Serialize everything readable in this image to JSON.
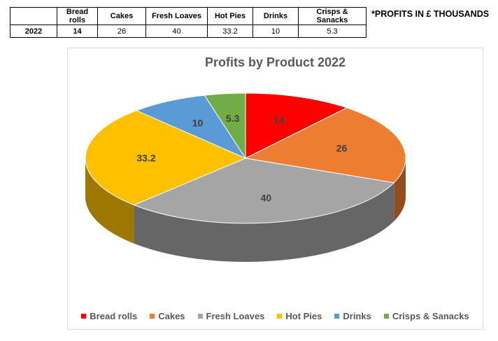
{
  "table": {
    "headers": [
      "",
      "Bread rolls",
      "Cakes",
      "Fresh Loaves",
      "Hot Pies",
      "Drinks",
      "Crisps & Sanacks"
    ],
    "row": [
      "2022",
      "14",
      "26",
      "40",
      "33.2",
      "10",
      "5.3"
    ]
  },
  "note": "*PROFITS IN £ THOUSANDS",
  "chart_data": {
    "type": "pie",
    "title": "Profits by Product 2022",
    "categories": [
      "Bread rolls",
      "Cakes",
      "Fresh Loaves",
      "Hot Pies",
      "Drinks",
      "Crisps & Sanacks"
    ],
    "values": [
      14,
      26,
      40,
      33.2,
      10,
      5.3
    ],
    "labels": [
      "14",
      "26",
      "40",
      "33.2",
      "10",
      "5.3"
    ],
    "colors": [
      "#ff0000",
      "#ed7d31",
      "#a5a5a5",
      "#ffc000",
      "#5b9bd5",
      "#70ad47"
    ],
    "legend_position": "bottom"
  }
}
